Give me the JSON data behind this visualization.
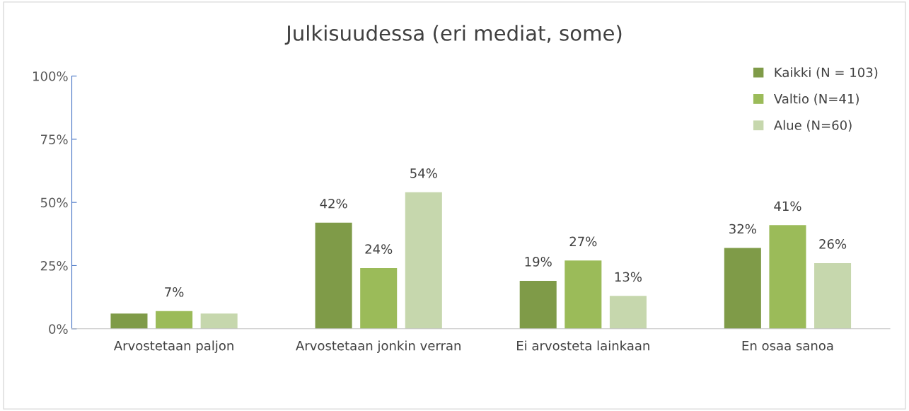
{
  "chart_data": {
    "type": "bar",
    "title": "Julkisuudessa (eri mediat, some)",
    "categories": [
      "Arvostetaan paljon",
      "Arvostetaan jonkin verran",
      "Ei arvosteta lainkaan",
      "En osaa sanoa"
    ],
    "series": [
      {
        "name": "Kaikki (N = 103)",
        "color": "#7f9b48",
        "values": [
          6,
          42,
          19,
          32
        ],
        "value_labels": [
          null,
          "42%",
          "19%",
          "32%"
        ]
      },
      {
        "name": "Valtio (N=41)",
        "color": "#9bbb59",
        "values": [
          7,
          24,
          27,
          41
        ],
        "value_labels": [
          "7%",
          "24%",
          "27%",
          "41%"
        ]
      },
      {
        "name": "Alue (N=60)",
        "color": "#c6d7ad",
        "values": [
          6,
          54,
          13,
          26
        ],
        "value_labels": [
          null,
          "54%",
          "13%",
          "26%"
        ]
      }
    ],
    "ylim": [
      0,
      100
    ],
    "yticks": [
      {
        "value": 0,
        "label": "0%"
      },
      {
        "value": 25,
        "label": "25%"
      },
      {
        "value": 50,
        "label": "50%"
      },
      {
        "value": 75,
        "label": "75%"
      },
      {
        "value": 100,
        "label": "100%"
      }
    ],
    "grid": false,
    "legend": "top right"
  }
}
